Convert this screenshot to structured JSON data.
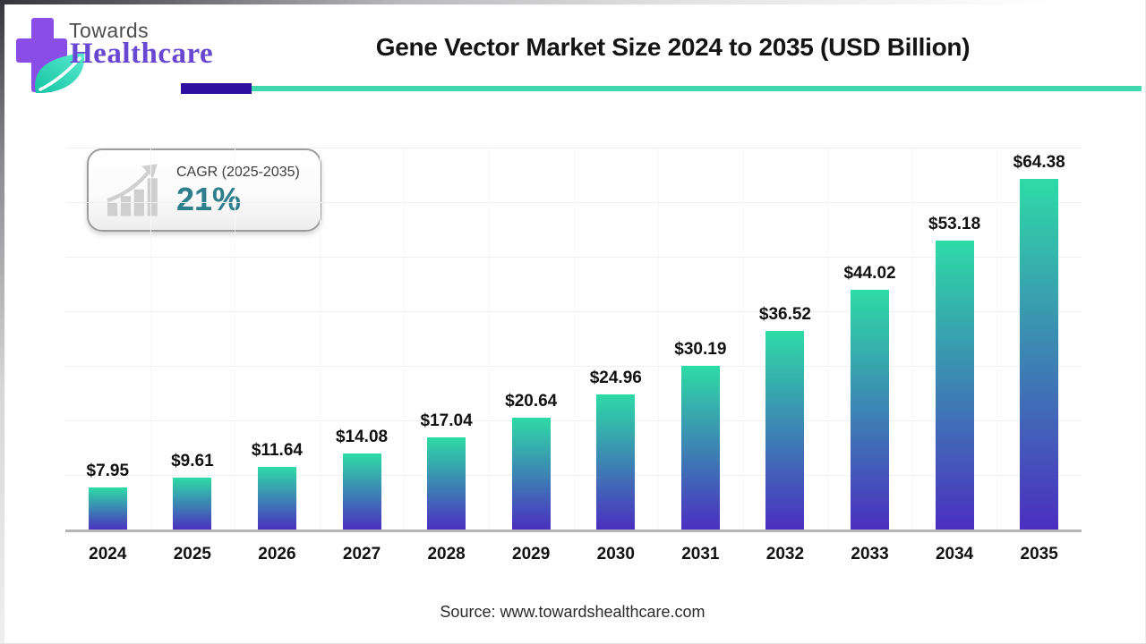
{
  "header": {
    "logo_line1": "Towards",
    "logo_line2": "Healthcare",
    "title": "Gene Vector Market Size 2024 to 2035 (USD Billion)",
    "accent_indigo": "#2d10a2",
    "accent_teal": "#41d8ae",
    "logo_purple": "#8a4ee6",
    "logo_text_purple": "#6847d2"
  },
  "badge": {
    "label": "CAGR (2025-2035)",
    "value": "21%",
    "value_color": "#2e7e8e",
    "icon": "growth-bar-chart-with-arrow"
  },
  "chart_data": {
    "type": "bar",
    "title": "Gene Vector Market Size 2024 to 2035 (USD Billion)",
    "categories": [
      "2024",
      "2025",
      "2026",
      "2027",
      "2028",
      "2029",
      "2030",
      "2031",
      "2032",
      "2033",
      "2034",
      "2035"
    ],
    "values": [
      7.95,
      9.61,
      11.64,
      14.08,
      17.04,
      20.64,
      24.96,
      30.19,
      36.52,
      44.02,
      53.18,
      64.38
    ],
    "value_prefix": "$",
    "unit": "USD Billion",
    "xlabel": "",
    "ylabel": "",
    "ylim": [
      0,
      70
    ],
    "grid_step": 10,
    "grid": "horizontal, very faint, no y-axis tick labels",
    "legend": "none",
    "bar_gradient_top": "#2edba6",
    "bar_gradient_bottom": "#4b2ec0"
  },
  "footer": {
    "source": "Source: www.towardshealthcare.com"
  }
}
